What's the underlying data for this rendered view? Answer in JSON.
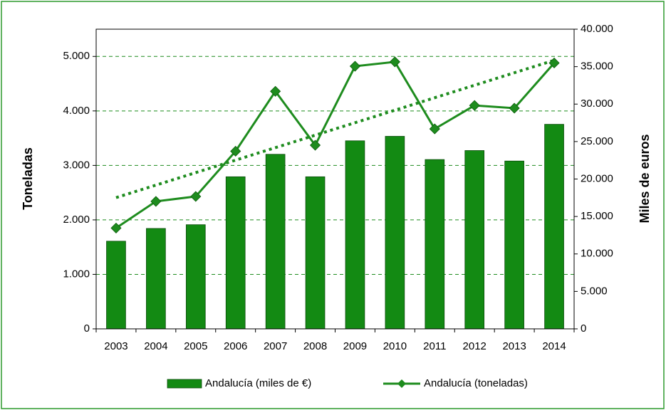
{
  "chart_data": {
    "type": "bar-line",
    "y_label": "Toneladas",
    "y2_label": "Miles de euros",
    "categories": [
      "2003",
      "2004",
      "2005",
      "2006",
      "2007",
      "2008",
      "2009",
      "2010",
      "2011",
      "2012",
      "2013",
      "2014"
    ],
    "series": [
      {
        "name": "Andalucía (miles de €)",
        "type": "bar",
        "axis": "y2",
        "color": "#138a13",
        "values": [
          11700,
          13400,
          13900,
          20300,
          23300,
          20300,
          25100,
          25700,
          22600,
          23800,
          22400,
          27300
        ]
      },
      {
        "name": "Andalucía (toneladas)",
        "type": "line",
        "axis": "y",
        "color": "#1e8c1e",
        "trendline": true,
        "values": [
          1850,
          2340,
          2430,
          3260,
          4360,
          3370,
          4820,
          4900,
          3670,
          4100,
          4050,
          4880
        ]
      }
    ],
    "ylim": [
      0,
      5500
    ],
    "yticks": [
      0,
      {
        "value": 1000,
        "label": "1.000"
      },
      {
        "value": 2000,
        "label": "2.000"
      },
      {
        "value": 3000,
        "label": "3.000"
      },
      {
        "value": 4000,
        "label": "4.000"
      },
      {
        "value": 5000,
        "label": "5.000"
      }
    ],
    "y2lim": [
      0,
      40000
    ],
    "y2ticks": [
      0,
      {
        "value": 5000,
        "label": "5.000"
      },
      {
        "value": 10000,
        "label": "10.000"
      },
      {
        "value": 15000,
        "label": "15.000"
      },
      {
        "value": 20000,
        "label": "20.000"
      },
      {
        "value": 25000,
        "label": "25.000"
      },
      {
        "value": 30000,
        "label": "30.000"
      },
      {
        "value": 35000,
        "label": "35.000"
      },
      {
        "value": 40000,
        "label": "40.000"
      }
    ],
    "grid": true,
    "legend": "bottom"
  }
}
